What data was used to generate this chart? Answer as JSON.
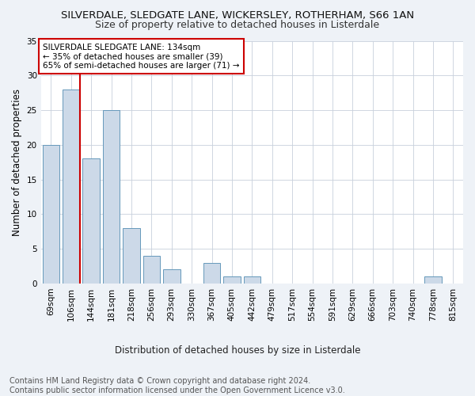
{
  "title": "SILVERDALE, SLEDGATE LANE, WICKERSLEY, ROTHERHAM, S66 1AN",
  "subtitle": "Size of property relative to detached houses in Listerdale",
  "xlabel_bottom": "Distribution of detached houses by size in Listerdale",
  "ylabel": "Number of detached properties",
  "categories": [
    "69sqm",
    "106sqm",
    "144sqm",
    "181sqm",
    "218sqm",
    "256sqm",
    "293sqm",
    "330sqm",
    "367sqm",
    "405sqm",
    "442sqm",
    "479sqm",
    "517sqm",
    "554sqm",
    "591sqm",
    "629sqm",
    "666sqm",
    "703sqm",
    "740sqm",
    "778sqm",
    "815sqm"
  ],
  "values": [
    20,
    28,
    18,
    25,
    8,
    4,
    2,
    0,
    3,
    1,
    1,
    0,
    0,
    0,
    0,
    0,
    0,
    0,
    0,
    1,
    0
  ],
  "bar_color": "#ccd9e8",
  "bar_edge_color": "#6699bb",
  "vline_bar_index": 1,
  "vline_color": "#cc0000",
  "annotation_text": "SILVERDALE SLEDGATE LANE: 134sqm\n← 35% of detached houses are smaller (39)\n65% of semi-detached houses are larger (71) →",
  "annotation_box_color": "#ffffff",
  "annotation_box_edge": "#cc0000",
  "ylim": [
    0,
    35
  ],
  "yticks": [
    0,
    5,
    10,
    15,
    20,
    25,
    30,
    35
  ],
  "footer_text": "Contains HM Land Registry data © Crown copyright and database right 2024.\nContains public sector information licensed under the Open Government Licence v3.0.",
  "bg_color": "#eef2f7",
  "plot_bg_color": "#ffffff",
  "grid_color": "#c8d0dc",
  "title_fontsize": 9.5,
  "subtitle_fontsize": 9,
  "tick_fontsize": 7.5,
  "ylabel_fontsize": 8.5,
  "annotation_fontsize": 7.5,
  "footer_fontsize": 7
}
